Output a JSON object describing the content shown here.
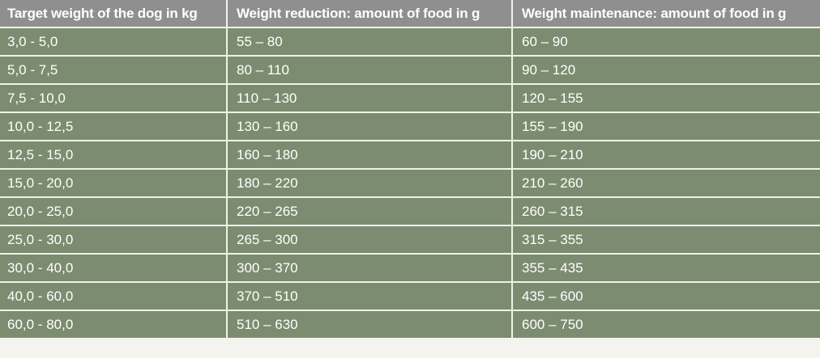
{
  "table": {
    "headers": [
      "Target weight of the dog in kg",
      "Weight reduction: amount of food in g",
      "Weight maintenance: amount of food in g"
    ],
    "rows": [
      [
        "3,0 - 5,0",
        "55 – 80",
        "60 – 90"
      ],
      [
        "5,0 - 7,5",
        "80 – 110",
        "90 – 120"
      ],
      [
        "7,5 - 10,0",
        "110 – 130",
        "120 – 155"
      ],
      [
        "10,0 - 12,5",
        "130 – 160",
        "155 – 190"
      ],
      [
        "12,5 - 15,0",
        "160 – 180",
        "190 – 210"
      ],
      [
        "15,0 - 20,0",
        "180 – 220",
        "210 – 260"
      ],
      [
        "20,0 - 25,0",
        "220 – 265",
        "260 – 315"
      ],
      [
        "25,0 - 30,0",
        "265 – 300",
        "315 – 355"
      ],
      [
        "30,0 - 40,0",
        "300 – 370",
        "355 – 435"
      ],
      [
        "40,0 - 60,0",
        "370 – 510",
        "435 – 600"
      ],
      [
        "60,0 - 80,0",
        "510 – 630",
        "600 – 750"
      ]
    ]
  },
  "colors": {
    "header_bg": "#8f8f8f",
    "row_bg": "#7c8c70",
    "border": "#f0f2ea",
    "text": "#ffffff"
  }
}
